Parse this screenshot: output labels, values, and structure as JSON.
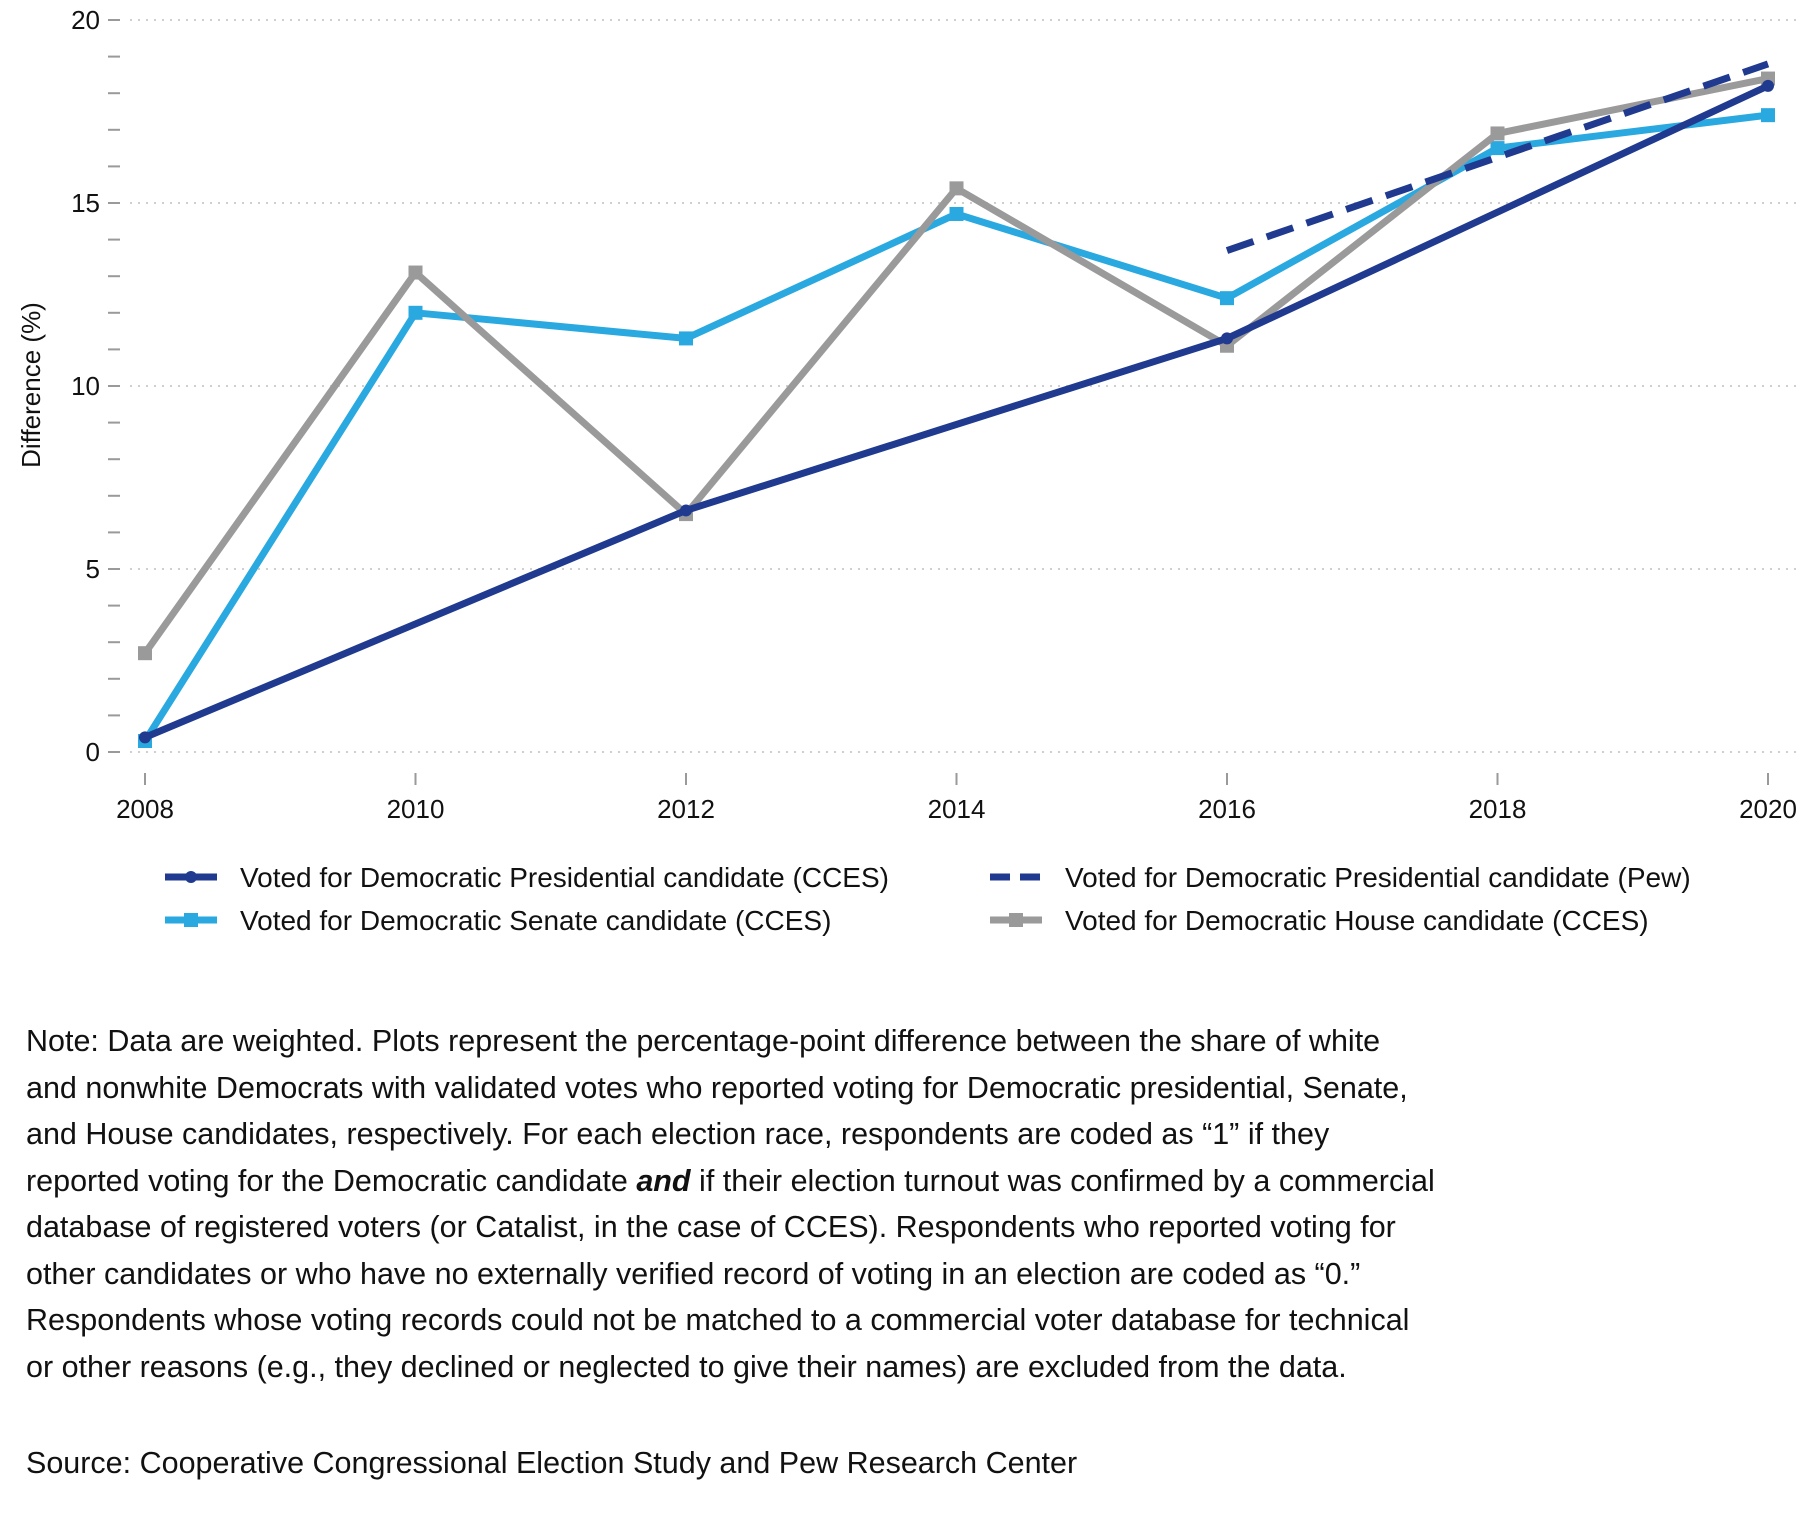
{
  "chart_data": {
    "type": "line",
    "title": "",
    "xlabel": "",
    "ylabel": "Difference (%)",
    "x": [
      2008,
      2010,
      2012,
      2014,
      2016,
      2018,
      2020
    ],
    "xticks": [
      "2008",
      "2010",
      "2012",
      "2014",
      "2016",
      "2018",
      "2020"
    ],
    "yticks": [
      "0",
      "5",
      "10",
      "15",
      "20"
    ],
    "xlim": [
      2008,
      2020
    ],
    "ylim": [
      0,
      20
    ],
    "grid": "horizontal dotted",
    "legend_position": "bottom",
    "series": [
      {
        "name": "Voted for Democratic Presidential candidate (CCES)",
        "color": "#1f3a8f",
        "style": "solid",
        "marker": "circle",
        "x": [
          2008,
          2012,
          2016,
          2020
        ],
        "values": [
          0.4,
          6.6,
          11.3,
          18.2
        ]
      },
      {
        "name": "Voted for Democratic Presidential candidate (Pew)",
        "color": "#1f3a8f",
        "style": "dashed",
        "marker": "none",
        "x": [
          2016,
          2020
        ],
        "values": [
          13.7,
          18.8
        ]
      },
      {
        "name": "Voted for Democratic Senate candidate (CCES)",
        "color": "#2aa8e0",
        "style": "solid",
        "marker": "square",
        "x": [
          2008,
          2010,
          2012,
          2014,
          2016,
          2018,
          2020
        ],
        "values": [
          0.3,
          12.0,
          11.3,
          14.7,
          12.4,
          16.5,
          17.4
        ]
      },
      {
        "name": "Voted for Democratic House candidate (CCES)",
        "color": "#9a9a9a",
        "style": "solid",
        "marker": "square",
        "x": [
          2008,
          2010,
          2012,
          2014,
          2016,
          2018,
          2020
        ],
        "values": [
          2.7,
          13.1,
          6.5,
          15.4,
          11.1,
          16.9,
          18.4
        ]
      }
    ]
  },
  "legend_order": [
    0,
    1,
    2,
    3
  ],
  "note": {
    "lines": [
      "Note: Data are weighted. Plots represent the percentage-point difference between the share of white",
      "and nonwhite Democrats with validated votes who reported voting for Democratic presidential, Senate,",
      "and House candidates, respectively. For each election race, respondents are coded as “1” if they",
      "reported voting for the Democratic candidate ",
      "and",
      " if their election turnout was confirmed by a commercial",
      "database of registered voters (or Catalist, in the case of CCES). Respondents who reported voting for",
      "other candidates or who have no externally verified record of voting in an election are coded as “0.”",
      "Respondents whose voting records could not be matched to a commercial voter database for technical",
      "or other reasons (e.g., they declined or neglected to give their names) are excluded from the data."
    ]
  },
  "source": "Source: Cooperative Congressional Election Study and Pew Research Center"
}
